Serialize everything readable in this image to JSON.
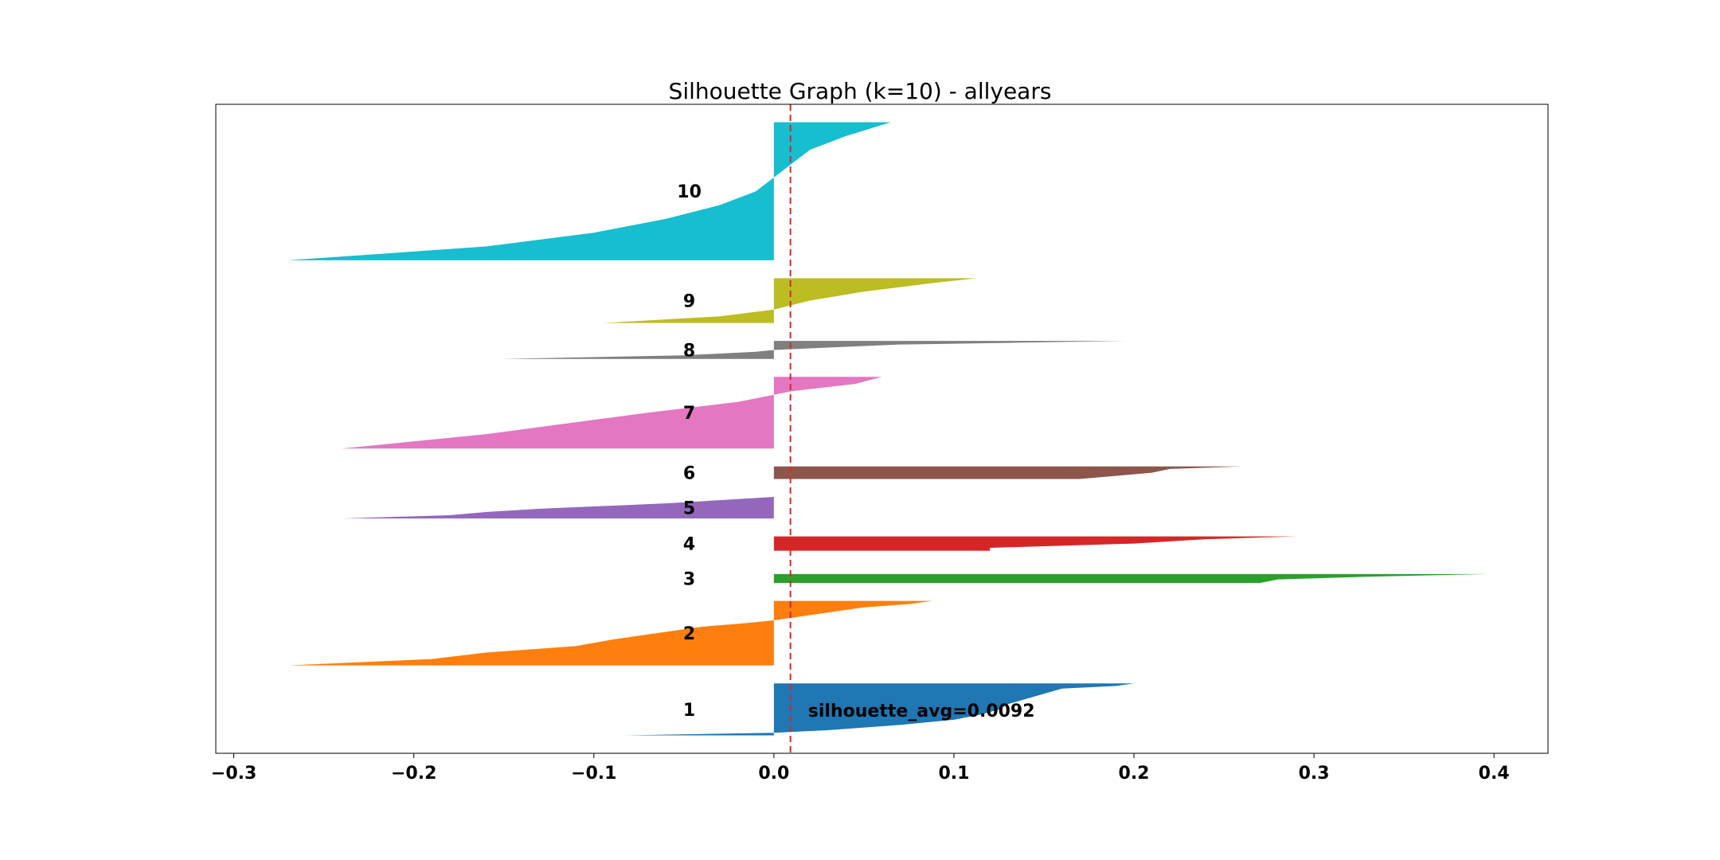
{
  "chart_data": {
    "type": "silhouette",
    "title": "Silhouette Graph (k=10) - allyears",
    "xlabel": "",
    "ylabel": "",
    "xlim": [
      -0.31,
      0.43
    ],
    "xticks": [
      -0.3,
      -0.2,
      -0.1,
      0.0,
      0.1,
      0.2,
      0.3,
      0.4
    ],
    "xtick_labels": [
      "−0.3",
      "−0.2",
      "−0.1",
      "0.0",
      "0.1",
      "0.2",
      "0.3",
      "0.4"
    ],
    "grid": false,
    "silhouette_avg": 0.0092,
    "avg_label": "silhouette_avg=0.0092",
    "avg_line_color": "#d62728",
    "clusters": [
      {
        "label": "1",
        "color": "#1f77b4",
        "y_range": [
          10,
          39
        ],
        "profile": [
          [
            0,
            0.2
          ],
          [
            0.05,
            0.19
          ],
          [
            0.1,
            0.16
          ],
          [
            0.15,
            0.155
          ],
          [
            0.2,
            0.15
          ],
          [
            0.3,
            0.14
          ],
          [
            0.4,
            0.13
          ],
          [
            0.5,
            0.125
          ],
          [
            0.6,
            0.115
          ],
          [
            0.7,
            0.1
          ],
          [
            0.8,
            0.07
          ],
          [
            0.9,
            0.03
          ],
          [
            0.95,
            0.0
          ],
          [
            1,
            -0.083
          ]
        ]
      },
      {
        "label": "2",
        "color": "#ff7f0e",
        "y_range": [
          49,
          85
        ],
        "profile": [
          [
            0,
            0.088
          ],
          [
            0.05,
            0.075
          ],
          [
            0.1,
            0.05
          ],
          [
            0.2,
            0.025
          ],
          [
            0.3,
            0.0
          ],
          [
            0.35,
            -0.018
          ],
          [
            0.4,
            -0.04
          ],
          [
            0.5,
            -0.065
          ],
          [
            0.6,
            -0.09
          ],
          [
            0.7,
            -0.11
          ],
          [
            0.8,
            -0.16
          ],
          [
            0.9,
            -0.19
          ],
          [
            1,
            -0.27
          ]
        ]
      },
      {
        "label": "3",
        "color": "#2ca02c",
        "y_range": [
          95,
          100
        ],
        "profile": [
          [
            0,
            0.397
          ],
          [
            0.3,
            0.33
          ],
          [
            0.6,
            0.28
          ],
          [
            1,
            0.27
          ]
        ]
      },
      {
        "label": "4",
        "color": "#d62728",
        "y_range": [
          113,
          121
        ],
        "profile": [
          [
            0,
            0.29
          ],
          [
            0.2,
            0.24
          ],
          [
            0.5,
            0.2
          ],
          [
            0.8,
            0.12
          ],
          [
            1,
            0.12
          ]
        ]
      },
      {
        "label": "5",
        "color": "#9467bd",
        "y_range": [
          131,
          143
        ],
        "profile": [
          [
            0,
            0.0
          ],
          [
            0.3,
            -0.06
          ],
          [
            0.55,
            -0.13
          ],
          [
            0.7,
            -0.16
          ],
          [
            0.85,
            -0.18
          ],
          [
            1,
            -0.24
          ]
        ]
      },
      {
        "label": "6",
        "color": "#8c564b",
        "y_range": [
          153,
          160
        ],
        "profile": [
          [
            0,
            0.26
          ],
          [
            0.2,
            0.22
          ],
          [
            0.5,
            0.21
          ],
          [
            1,
            0.17
          ]
        ]
      },
      {
        "label": "7",
        "color": "#e377c2",
        "y_range": [
          170,
          210
        ],
        "profile": [
          [
            0,
            0.06
          ],
          [
            0.1,
            0.045
          ],
          [
            0.2,
            0.01
          ],
          [
            0.25,
            0.0
          ],
          [
            0.35,
            -0.02
          ],
          [
            0.5,
            -0.07
          ],
          [
            0.6,
            -0.1
          ],
          [
            0.7,
            -0.13
          ],
          [
            0.8,
            -0.16
          ],
          [
            0.9,
            -0.2
          ],
          [
            1,
            -0.24
          ]
        ]
      },
      {
        "label": "8",
        "color": "#7f7f7f",
        "y_range": [
          220,
          230
        ],
        "profile": [
          [
            0,
            0.195
          ],
          [
            0.2,
            0.07
          ],
          [
            0.5,
            0.0
          ],
          [
            0.6,
            -0.01
          ],
          [
            0.8,
            -0.05
          ],
          [
            1,
            -0.15
          ]
        ]
      },
      {
        "label": "9",
        "color": "#bcbd22",
        "y_range": [
          240,
          265
        ],
        "profile": [
          [
            0,
            0.113
          ],
          [
            0.1,
            0.09
          ],
          [
            0.3,
            0.05
          ],
          [
            0.5,
            0.02
          ],
          [
            0.7,
            0.0
          ],
          [
            0.85,
            -0.03
          ],
          [
            1,
            -0.095
          ]
        ]
      },
      {
        "label": "10",
        "color": "#17becf",
        "y_range": [
          275,
          352
        ],
        "profile": [
          [
            0,
            0.065
          ],
          [
            0.1,
            0.04
          ],
          [
            0.2,
            0.02
          ],
          [
            0.3,
            0.01
          ],
          [
            0.4,
            0.0
          ],
          [
            0.5,
            -0.01
          ],
          [
            0.6,
            -0.03
          ],
          [
            0.7,
            -0.06
          ],
          [
            0.8,
            -0.1
          ],
          [
            0.9,
            -0.16
          ],
          [
            1,
            -0.27
          ]
        ]
      }
    ]
  }
}
